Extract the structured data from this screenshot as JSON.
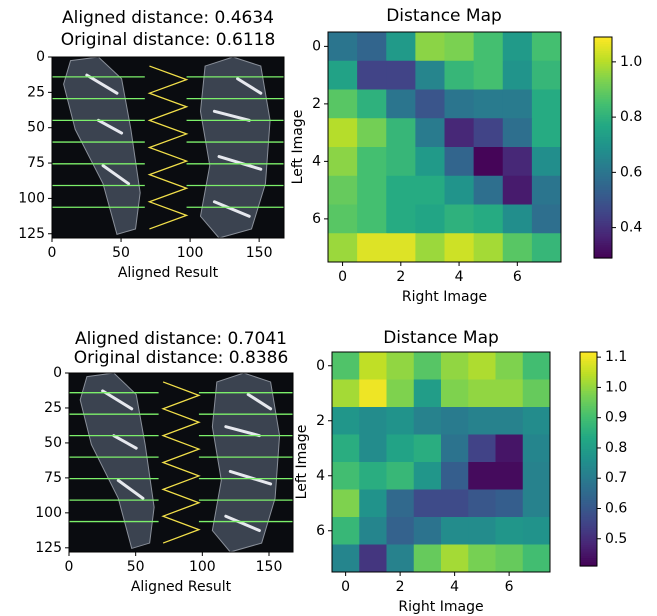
{
  "chart_data": [
    {
      "type": "image",
      "title_lines": [
        "Aligned distance: 0.4634",
        "Original distance: 0.6118"
      ],
      "xlabel": "Aligned Result",
      "xlim": [
        0,
        168
      ],
      "ylim": [
        128,
        0
      ],
      "xticks": [
        0,
        50,
        100,
        150
      ],
      "yticks": [
        0,
        25,
        50,
        75,
        100,
        125
      ]
    },
    {
      "type": "heatmap",
      "title": "Distance Map",
      "xlabel": "Right Image",
      "ylabel": "Left Image",
      "xlim": [
        -0.5,
        7.5
      ],
      "ylim": [
        7.5,
        -0.5
      ],
      "xticks": [
        0,
        2,
        4,
        6
      ],
      "yticks": [
        0,
        2,
        4,
        6
      ],
      "colormap": "viridis",
      "clim": [
        0.29,
        1.09
      ],
      "cticks": [
        0.4,
        0.6,
        0.8,
        {
          "value": 1.0,
          "label": "1.0"
        }
      ],
      "values": [
        [
          0.6,
          0.55,
          0.72,
          0.95,
          0.93,
          0.85,
          0.72,
          0.85
        ],
        [
          0.75,
          0.45,
          0.45,
          0.65,
          0.82,
          0.85,
          0.7,
          0.82
        ],
        [
          0.88,
          0.8,
          0.6,
          0.5,
          0.6,
          0.62,
          0.62,
          0.78
        ],
        [
          1.0,
          0.92,
          0.82,
          0.62,
          0.38,
          0.45,
          0.58,
          0.78
        ],
        [
          0.95,
          0.85,
          0.82,
          0.72,
          0.55,
          0.3,
          0.38,
          0.68
        ],
        [
          0.9,
          0.85,
          0.78,
          0.78,
          0.7,
          0.58,
          0.35,
          0.6
        ],
        [
          0.88,
          0.85,
          0.78,
          0.76,
          0.8,
          0.78,
          0.68,
          0.58
        ],
        [
          0.97,
          1.05,
          1.05,
          0.97,
          1.03,
          0.98,
          0.88,
          0.82
        ]
      ]
    },
    {
      "type": "image",
      "title_lines": [
        "Aligned distance: 0.7041",
        "Original distance: 0.8386"
      ],
      "xlabel": "Aligned Result",
      "xlim": [
        0,
        168
      ],
      "ylim": [
        128,
        0
      ],
      "xticks": [
        0,
        50,
        100,
        150
      ],
      "yticks": [
        0,
        25,
        50,
        75,
        100,
        125
      ]
    },
    {
      "type": "heatmap",
      "title": "Distance Map",
      "xlabel": "Right Image",
      "ylabel": "Left Image",
      "xlim": [
        -0.5,
        7.5
      ],
      "ylim": [
        7.5,
        -0.5
      ],
      "xticks": [
        0,
        2,
        4,
        6
      ],
      "yticks": [
        0,
        2,
        4,
        6
      ],
      "colormap": "viridis",
      "clim": [
        0.41,
        1.117
      ],
      "cticks": [
        1.1,
        {
          "value": 1.0,
          "label": "1.0"
        },
        0.9,
        0.8,
        0.7,
        0.6,
        0.5
      ],
      "values": [
        [
          0.92,
          1.05,
          1.0,
          0.93,
          1.0,
          1.03,
          0.98,
          0.9
        ],
        [
          1.02,
          1.1,
          0.98,
          0.8,
          0.98,
          1.0,
          1.0,
          0.95
        ],
        [
          0.78,
          0.75,
          0.77,
          0.72,
          0.7,
          0.72,
          0.72,
          0.75
        ],
        [
          0.85,
          0.75,
          0.82,
          0.85,
          0.68,
          0.55,
          0.45,
          0.73
        ],
        [
          0.9,
          0.85,
          0.88,
          0.78,
          0.62,
          0.43,
          0.43,
          0.72
        ],
        [
          0.98,
          0.77,
          0.65,
          0.57,
          0.57,
          0.6,
          0.62,
          0.72
        ],
        [
          0.88,
          0.73,
          0.63,
          0.68,
          0.75,
          0.75,
          0.78,
          0.77
        ],
        [
          0.73,
          0.52,
          0.72,
          0.95,
          1.02,
          0.97,
          0.95,
          0.9
        ]
      ]
    }
  ]
}
